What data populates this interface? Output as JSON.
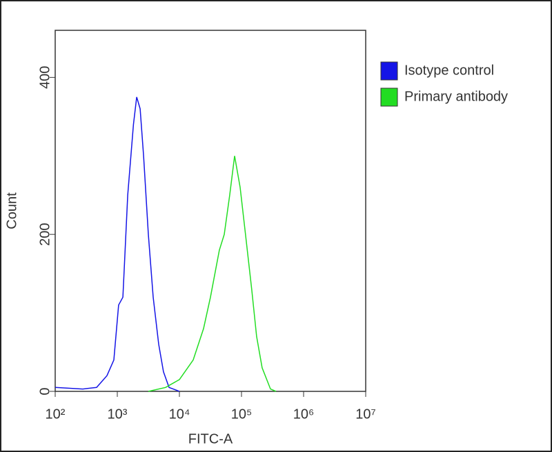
{
  "chart_data": {
    "type": "line",
    "x_label": "FITC-A",
    "y_label": "Count",
    "xscale": "log",
    "xlim": [
      100,
      10000000
    ],
    "xticks": [
      {
        "value": 100,
        "label": "10²"
      },
      {
        "value": 1000,
        "label": "10³"
      },
      {
        "value": 10000,
        "label": "10⁴"
      },
      {
        "value": 100000,
        "label": "10⁵"
      },
      {
        "value": 1000000,
        "label": "10⁶"
      },
      {
        "value": 10000000,
        "label": "10⁷"
      }
    ],
    "ylim": [
      0,
      460
    ],
    "yticks": [
      0,
      200,
      400
    ],
    "legend": "right",
    "series": [
      {
        "name": "Isotype control",
        "color": "#1414e6",
        "x": [
          100,
          278,
          464,
          681,
          880,
          1050,
          1230,
          1470,
          1820,
          2050,
          2330,
          2650,
          3160,
          3780,
          4640,
          5540,
          6810,
          10000
        ],
        "values": [
          5,
          3,
          5,
          20,
          40,
          110,
          120,
          250,
          340,
          375,
          360,
          300,
          200,
          120,
          60,
          25,
          5,
          0
        ]
      },
      {
        "name": "Primary antibody",
        "color": "#22dd22",
        "x": [
          3160,
          6000,
          10000,
          16700,
          24500,
          31600,
          44000,
          52700,
          64600,
          77400,
          95000,
          116000,
          146000,
          175000,
          215000,
          293000,
          359000
        ],
        "values": [
          0,
          5,
          15,
          40,
          80,
          120,
          180,
          200,
          250,
          300,
          260,
          200,
          130,
          70,
          30,
          3,
          0
        ]
      }
    ]
  }
}
